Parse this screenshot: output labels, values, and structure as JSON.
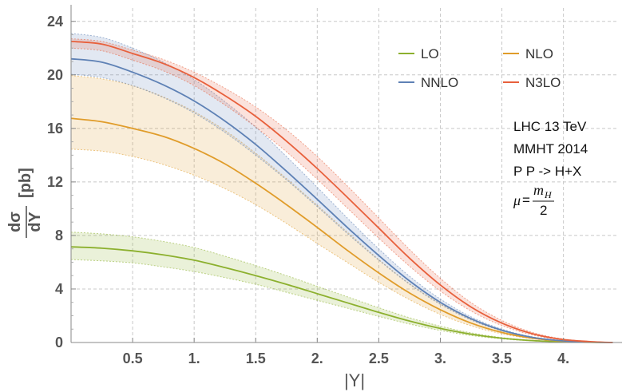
{
  "chart_data": {
    "type": "line",
    "title": "",
    "xlabel": "|Y|",
    "ylabel": {
      "numerator": "dσ",
      "denominator": "dY",
      "unit": "[pb]"
    },
    "xlim": [
      0.0,
      4.45
    ],
    "ylim": [
      0,
      25
    ],
    "xticks": [
      0.5,
      1.0,
      1.5,
      2.0,
      2.5,
      3.0,
      3.5,
      4.0
    ],
    "xtick_labels": [
      "0.5",
      "1.",
      "1.5",
      "2.",
      "2.5",
      "3.",
      "3.5",
      "4."
    ],
    "yticks": [
      0,
      4,
      8,
      12,
      16,
      20,
      24
    ],
    "ytick_labels": [
      "0",
      "4",
      "8",
      "12",
      "16",
      "20",
      "24"
    ],
    "grid": "dashed",
    "x": [
      0.0,
      0.25,
      0.5,
      0.75,
      1.0,
      1.25,
      1.5,
      1.75,
      2.0,
      2.25,
      2.5,
      2.75,
      3.0,
      3.25,
      3.5,
      3.75,
      4.0,
      4.25,
      4.4
    ],
    "series": [
      {
        "name": "LO",
        "color": "#8cb02e",
        "values": [
          7.15,
          7.05,
          6.85,
          6.55,
          6.15,
          5.6,
          5.0,
          4.35,
          3.65,
          2.95,
          2.25,
          1.6,
          1.05,
          0.62,
          0.32,
          0.14,
          0.05,
          0.01,
          0.0
        ],
        "lower": [
          6.2,
          6.1,
          5.95,
          5.65,
          5.3,
          4.85,
          4.35,
          3.75,
          3.15,
          2.55,
          1.95,
          1.38,
          0.9,
          0.52,
          0.27,
          0.12,
          0.04,
          0.01,
          0.0
        ],
        "upper": [
          8.25,
          8.12,
          7.9,
          7.55,
          7.1,
          6.45,
          5.75,
          5.0,
          4.2,
          3.4,
          2.6,
          1.85,
          1.22,
          0.72,
          0.37,
          0.16,
          0.06,
          0.01,
          0.0
        ]
      },
      {
        "name": "NLO",
        "color": "#e09c2a",
        "values": [
          16.75,
          16.5,
          16.0,
          15.4,
          14.5,
          13.35,
          11.9,
          10.3,
          8.6,
          6.85,
          5.2,
          3.7,
          2.45,
          1.45,
          0.75,
          0.32,
          0.1,
          0.02,
          0.0
        ],
        "lower": [
          14.45,
          14.3,
          13.9,
          13.3,
          12.5,
          11.5,
          10.3,
          8.9,
          7.4,
          5.95,
          4.5,
          3.2,
          2.1,
          1.25,
          0.65,
          0.28,
          0.09,
          0.02,
          0.0
        ],
        "upper": [
          19.95,
          19.7,
          19.2,
          18.35,
          17.25,
          15.85,
          14.15,
          12.25,
          10.25,
          8.2,
          6.2,
          4.4,
          2.9,
          1.72,
          0.88,
          0.38,
          0.12,
          0.02,
          0.0
        ]
      },
      {
        "name": "NNLO",
        "color": "#5e81b5",
        "values": [
          21.2,
          20.95,
          20.2,
          19.25,
          18.05,
          16.55,
          14.8,
          12.8,
          10.7,
          8.55,
          6.5,
          4.6,
          3.0,
          1.78,
          0.92,
          0.38,
          0.12,
          0.02,
          0.0
        ],
        "lower": [
          20.05,
          19.8,
          19.2,
          18.3,
          17.15,
          15.7,
          14.0,
          12.15,
          10.15,
          8.1,
          6.15,
          4.35,
          2.85,
          1.68,
          0.87,
          0.36,
          0.11,
          0.02,
          0.0
        ],
        "upper": [
          23.1,
          22.8,
          22.0,
          20.95,
          19.65,
          18.0,
          16.1,
          13.9,
          11.6,
          9.25,
          7.0,
          4.95,
          3.25,
          1.92,
          1.0,
          0.42,
          0.13,
          0.02,
          0.0
        ]
      },
      {
        "name": "N3LO",
        "color": "#e8603c",
        "values": [
          22.5,
          22.3,
          21.6,
          20.85,
          19.8,
          18.45,
          16.9,
          15.05,
          13.0,
          10.8,
          8.55,
          6.3,
          4.3,
          2.65,
          1.45,
          0.65,
          0.22,
          0.05,
          0.0
        ],
        "lower": [
          22.0,
          21.8,
          21.1,
          20.3,
          19.2,
          17.75,
          16.1,
          14.25,
          12.2,
          10.0,
          7.8,
          5.7,
          3.85,
          2.35,
          1.27,
          0.56,
          0.19,
          0.04,
          0.0
        ],
        "upper": [
          22.7,
          22.5,
          21.85,
          21.15,
          20.2,
          19.0,
          17.6,
          15.9,
          13.9,
          11.65,
          9.3,
          6.95,
          4.8,
          2.98,
          1.65,
          0.75,
          0.26,
          0.06,
          0.0
        ]
      }
    ],
    "legend": {
      "position": "top-right",
      "columns": 2,
      "order": [
        "LO",
        "NLO",
        "NNLO",
        "N3LO"
      ]
    },
    "annotations": [
      "LHC 13 TeV",
      "MMHT 2014",
      "P P -> H+X"
    ],
    "scale_annotation": {
      "mu": "μ",
      "eq": "=",
      "m": "m",
      "sub": "H",
      "denominator": "2"
    }
  }
}
